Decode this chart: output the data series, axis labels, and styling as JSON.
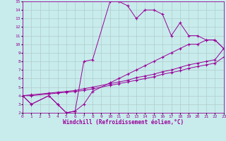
{
  "xlabel": "Windchill (Refroidissement éolien,°C)",
  "bg_color": "#c8ecec",
  "line_color": "#990099",
  "grid_color": "#b0cccc",
  "xmin": 0,
  "xmax": 23,
  "ymin": 2,
  "ymax": 15,
  "xticks": [
    0,
    1,
    2,
    3,
    4,
    5,
    6,
    7,
    8,
    9,
    10,
    11,
    12,
    13,
    14,
    15,
    16,
    17,
    18,
    19,
    20,
    21,
    22,
    23
  ],
  "yticks": [
    2,
    3,
    4,
    5,
    6,
    7,
    8,
    9,
    10,
    11,
    12,
    13,
    14,
    15
  ],
  "line1_x": [
    0,
    1,
    3,
    4,
    5,
    6,
    7,
    8,
    10,
    11,
    12,
    13,
    14,
    15,
    16,
    17,
    18,
    19,
    20,
    21,
    22,
    23
  ],
  "line1_y": [
    4,
    3,
    4,
    3,
    2,
    2.2,
    8,
    8.2,
    15,
    15,
    14.5,
    13,
    14,
    14,
    13.5,
    11,
    12.5,
    11,
    11,
    10.5,
    10.5,
    9.5
  ],
  "line2_x": [
    0,
    1,
    3,
    4,
    5,
    6,
    7,
    8,
    10,
    11,
    12,
    13,
    14,
    15,
    16,
    17,
    18,
    19,
    20,
    21,
    22,
    23
  ],
  "line2_y": [
    4,
    3,
    4,
    3,
    2,
    2.2,
    3,
    4.5,
    5.5,
    6,
    6.5,
    7,
    7.5,
    8,
    8.5,
    9,
    9.5,
    10,
    10,
    10.5,
    10.5,
    9.5
  ],
  "line3_x": [
    0,
    1,
    3,
    4,
    5,
    6,
    7,
    8,
    10,
    11,
    12,
    13,
    14,
    15,
    16,
    17,
    18,
    19,
    20,
    21,
    22,
    23
  ],
  "line3_y": [
    4,
    4.1,
    4.3,
    4.4,
    4.5,
    4.6,
    4.8,
    5.0,
    5.4,
    5.6,
    5.8,
    6.1,
    6.3,
    6.5,
    6.8,
    7.0,
    7.3,
    7.6,
    7.8,
    8.0,
    8.2,
    9.5
  ],
  "line4_x": [
    0,
    1,
    3,
    4,
    5,
    6,
    7,
    8,
    10,
    11,
    12,
    13,
    14,
    15,
    16,
    17,
    18,
    19,
    20,
    21,
    22,
    23
  ],
  "line4_y": [
    4,
    4.0,
    4.2,
    4.3,
    4.4,
    4.5,
    4.6,
    4.8,
    5.2,
    5.4,
    5.6,
    5.8,
    6.0,
    6.2,
    6.5,
    6.7,
    6.9,
    7.2,
    7.4,
    7.6,
    7.8,
    8.5
  ]
}
